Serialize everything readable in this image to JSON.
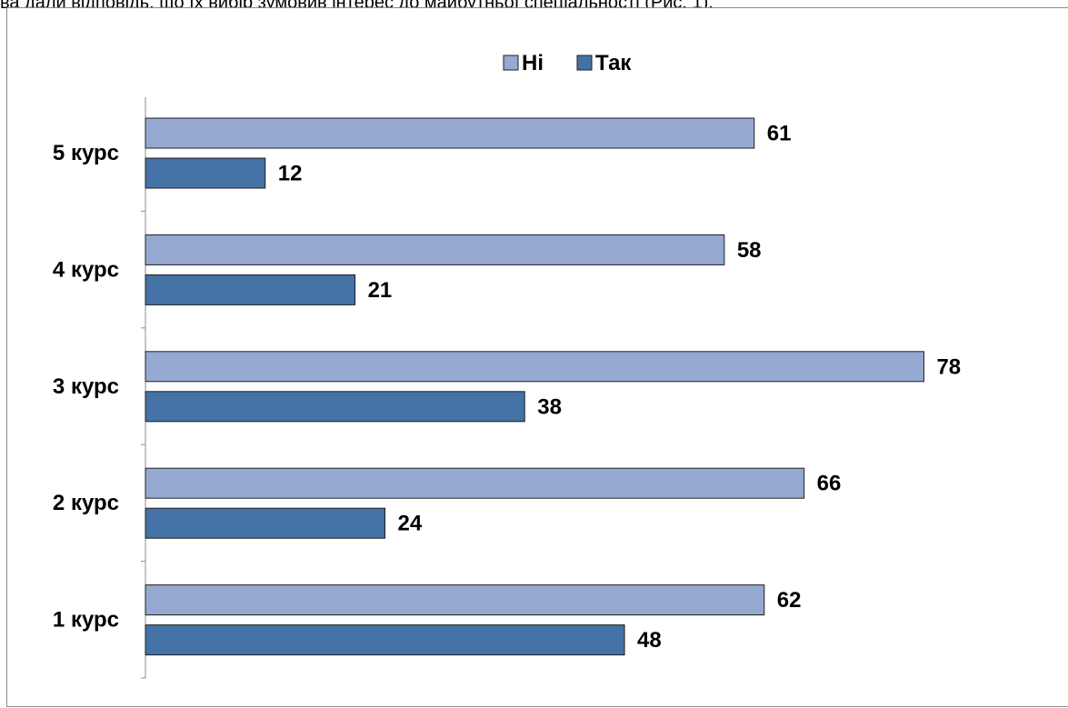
{
  "caption": "ва дали відповідь, що їх вибір зумовив інтерес до майбутньої спеціальності (Рис. 1).",
  "colors": {
    "ni": "#95A9D1",
    "tak": "#4472A4",
    "bar_stroke": "#1f1f1f",
    "axis": "#8c8c8c"
  },
  "chart_data": {
    "type": "bar",
    "orientation": "horizontal",
    "categories": [
      "5 курс",
      "4 курс",
      "3 курс",
      "2 курс",
      "1 курс"
    ],
    "series": [
      {
        "name": "Ні",
        "values": [
          61,
          58,
          78,
          66,
          62
        ]
      },
      {
        "name": "Так",
        "values": [
          12,
          21,
          38,
          24,
          48
        ]
      }
    ],
    "xlim": [
      0,
      80
    ],
    "grid": false,
    "legend_position": "top"
  }
}
